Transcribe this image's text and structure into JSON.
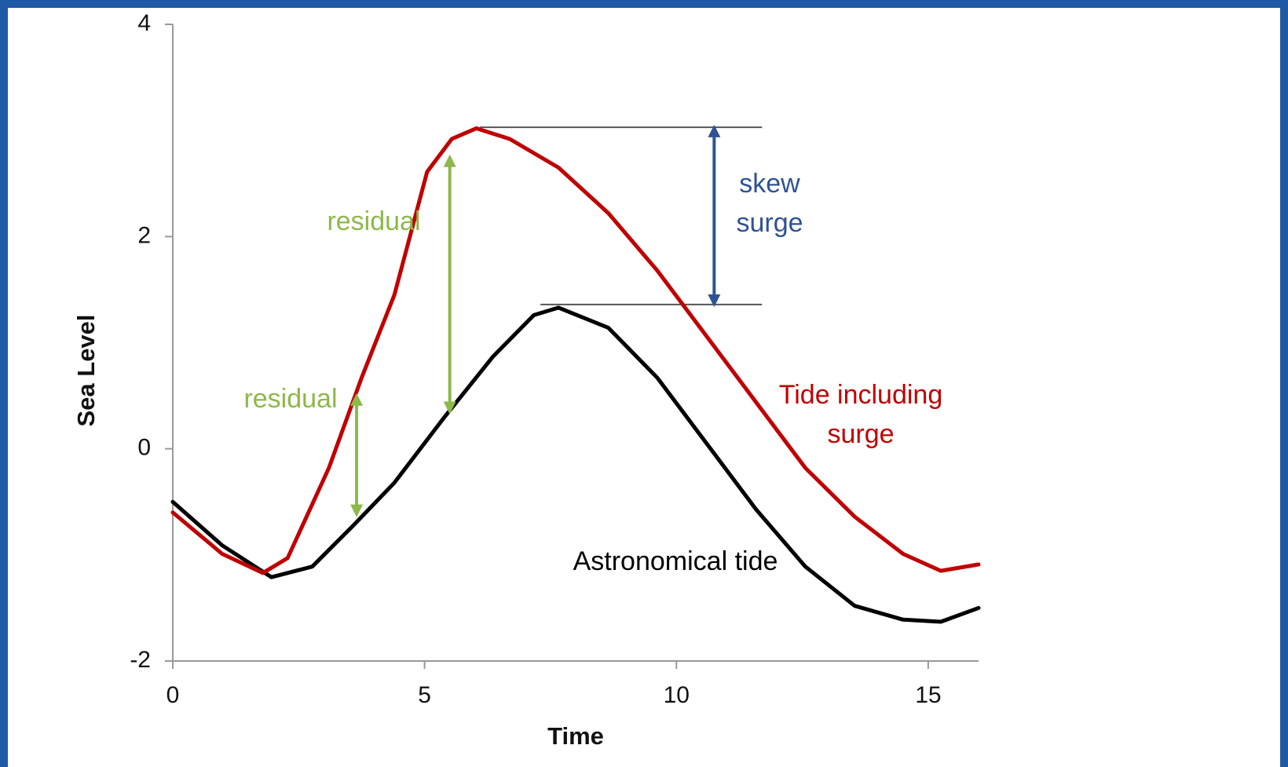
{
  "chart_data": {
    "type": "line",
    "x_label": "Time",
    "y_label": "Sea Level",
    "xlim": [
      0,
      16
    ],
    "xticks": [
      0,
      5,
      10,
      15
    ],
    "ylim": [
      -2,
      4
    ],
    "yticks": [
      -2,
      0,
      2,
      4
    ],
    "grid": false,
    "series": [
      {
        "name": "Astronomical tide",
        "color": "#000000",
        "x": [
          0,
          0.98,
          1.96,
          2.77,
          3.59,
          4.4,
          5.38,
          6.36,
          7.17,
          7.66,
          8.65,
          9.62,
          10.6,
          11.58,
          12.56,
          13.54,
          14.5,
          15.25,
          16
        ],
        "values": [
          -0.5,
          -0.91,
          -1.21,
          -1.11,
          -0.72,
          -0.32,
          0.29,
          0.87,
          1.26,
          1.33,
          1.14,
          0.67,
          0.05,
          -0.57,
          -1.11,
          -1.48,
          -1.61,
          -1.63,
          -1.5
        ]
      },
      {
        "name": "Tide including surge",
        "color": "#c00000",
        "x": [
          0,
          0.98,
          1.79,
          2.28,
          3.1,
          3.75,
          4.4,
          5.05,
          5.54,
          6.03,
          6.69,
          7.66,
          8.65,
          9.62,
          10.6,
          11.58,
          12.56,
          13.54,
          14.5,
          15.25,
          16
        ],
        "values": [
          -0.6,
          -0.99,
          -1.17,
          -1.03,
          -0.18,
          0.67,
          1.45,
          2.61,
          2.92,
          3.02,
          2.92,
          2.65,
          2.22,
          1.68,
          1.06,
          0.44,
          -0.18,
          -0.64,
          -0.99,
          -1.15,
          -1.09
        ]
      }
    ],
    "reference_lines": [
      {
        "y": 3.03,
        "x": [
          6.1,
          11.7
        ]
      },
      {
        "y": 1.36,
        "x": [
          7.3,
          11.7
        ]
      }
    ],
    "arrows": [
      {
        "x": 3.65,
        "from": -0.62,
        "to": 0.5,
        "color": "#8db84a"
      },
      {
        "x": 5.5,
        "from": 0.35,
        "to": 2.75,
        "color": "#8db84a"
      },
      {
        "x": 10.75,
        "from": 1.36,
        "to": 3.03,
        "color": "#2e5393"
      }
    ],
    "annotations": [
      {
        "lines": [
          "residual"
        ],
        "color": "#8db84a"
      },
      {
        "lines": [
          "residual"
        ],
        "color": "#8db84a"
      },
      {
        "lines": [
          "skew",
          "surge"
        ],
        "color": "#2e5393"
      },
      {
        "lines": [
          "Tide including",
          "surge"
        ],
        "color": "#c00000"
      },
      {
        "lines": [
          "Astronomical tide"
        ],
        "color": "#000000"
      }
    ]
  }
}
